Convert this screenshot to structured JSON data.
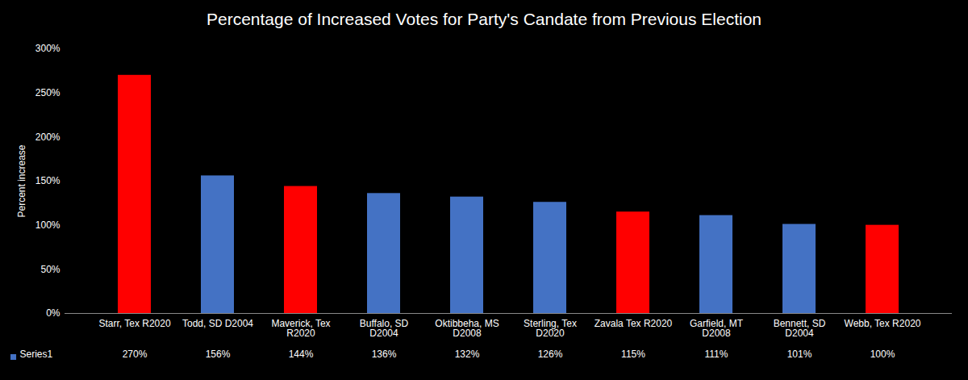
{
  "chart_data": {
    "type": "bar",
    "title": "Percentage of Increased Votes for Party's Candate from Previous Election",
    "y_label": "Percent increase",
    "categories": [
      "Starr, Tex R2020",
      "Todd, SD D2004",
      "Maverick, Tex R2020",
      "Buffalo, SD D2004",
      "Oktibbeha, MS D2008",
      "Sterling, Tex D2020",
      "Zavala Tex R2020",
      "Garfield, MT D2008",
      "Bennett, SD D2004",
      "Webb, Tex R2020"
    ],
    "series": [
      {
        "name": "Series1",
        "color": "#4472c4",
        "colors": [
          "#ff0000",
          "#4472c4",
          "#ff0000",
          "#4472c4",
          "#4472c4",
          "#4472c4",
          "#ff0000",
          "#4472c4",
          "#4472c4",
          "#ff0000"
        ],
        "values": [
          270,
          156,
          144,
          136,
          132,
          126,
          115,
          111,
          101,
          100
        ],
        "value_labels": [
          "270%",
          "156%",
          "144%",
          "136%",
          "132%",
          "126%",
          "115%",
          "111%",
          "101%",
          "100%"
        ]
      }
    ],
    "ylim": [
      0,
      300
    ],
    "yticks": [
      {
        "value": 0,
        "label": "0%"
      },
      {
        "value": 50,
        "label": "50%"
      },
      {
        "value": 100,
        "label": "100%"
      },
      {
        "value": 150,
        "label": "150%"
      },
      {
        "value": 200,
        "label": "200%"
      },
      {
        "value": 250,
        "label": "250%"
      },
      {
        "value": 300,
        "label": "300%"
      }
    ],
    "grid": false,
    "data_labels": true
  }
}
